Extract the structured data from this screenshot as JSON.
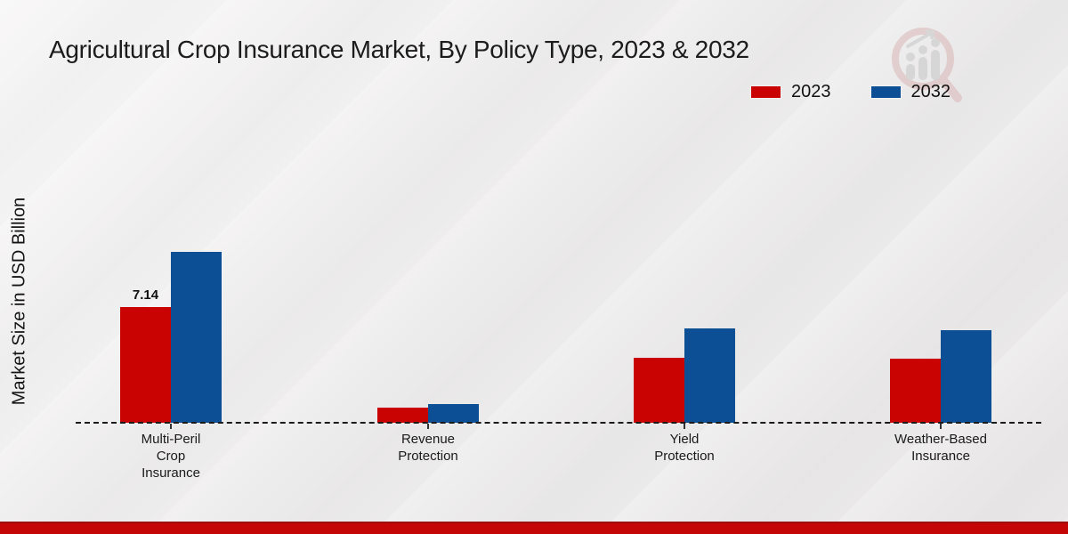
{
  "title": "Agricultural Crop Insurance Market, By Policy Type, 2023 & 2032",
  "y_axis_label": "Market Size in USD Billion",
  "legend": {
    "position": "top-right",
    "items": [
      {
        "label": "2023",
        "color": "#c90202"
      },
      {
        "label": "2032",
        "color": "#0d4f94"
      }
    ]
  },
  "watermark_icon": "magnifier-bar-chart-logo",
  "footer": {
    "color": "#c50606"
  },
  "chart_data": {
    "type": "bar",
    "title": "Agricultural Crop Insurance Market, By Policy Type, 2023 & 2032",
    "categories": [
      "Multi-Peril Crop Insurance",
      "Revenue Protection",
      "Yield Protection",
      "Weather-Based Insurance"
    ],
    "category_label_lines": [
      [
        "Multi-Peril",
        "Crop",
        "Insurance"
      ],
      [
        "Revenue",
        "Protection"
      ],
      [
        "Yield",
        "Protection"
      ],
      [
        "Weather-Based",
        "Insurance"
      ]
    ],
    "series": [
      {
        "name": "2023",
        "color": "#c90202",
        "values": [
          7.14,
          0.93,
          4.01,
          3.95
        ]
      },
      {
        "name": "2032",
        "color": "#0d4f94",
        "values": [
          10.55,
          1.15,
          5.82,
          5.71
        ]
      }
    ],
    "annotations": [
      {
        "series": "2023",
        "category": "Multi-Peril Crop Insurance",
        "text": "7.14"
      }
    ],
    "xlabel": "",
    "ylabel": "Market Size in USD Billion",
    "ylim": [
      0,
      12
    ],
    "grid": false,
    "baseline_style": "dashed",
    "legend_position": "top-right"
  }
}
